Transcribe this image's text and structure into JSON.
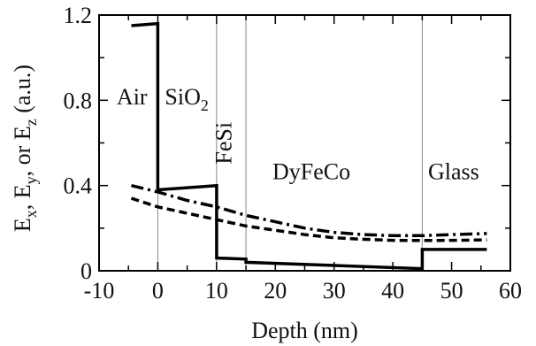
{
  "chart_data": {
    "type": "line",
    "xlabel": "Depth (nm)",
    "ylabel": {
      "parts": [
        {
          "text": "E"
        },
        {
          "text": "x",
          "sub": true
        },
        {
          "text": ", E"
        },
        {
          "text": "y",
          "sub": true
        },
        {
          "text": ", or E"
        },
        {
          "text": "z",
          "sub": true
        },
        {
          "text": " (a.u.)"
        }
      ]
    },
    "xlim": [
      -10,
      60
    ],
    "ylim": [
      0,
      1.2
    ],
    "xticks": [
      -10,
      0,
      10,
      20,
      30,
      40,
      50,
      60
    ],
    "xtick_labels": [
      "-10",
      "0",
      "10",
      "20",
      "30",
      "40",
      "50",
      "60"
    ],
    "yticks": [
      0,
      0.4,
      0.8,
      1.2
    ],
    "ytick_labels": [
      "0",
      "0.4",
      "0.8",
      "1.2"
    ],
    "grid": false,
    "boundaries": [
      0,
      10,
      15,
      45
    ],
    "boundary_color": "#888888",
    "regions": [
      {
        "x": -7,
        "y": 0.78,
        "parts": [
          {
            "text": "Air"
          }
        ]
      },
      {
        "x": 1.2,
        "y": 0.78,
        "parts": [
          {
            "text": "SiO"
          },
          {
            "text": "2",
            "sub": true
          }
        ]
      },
      {
        "x": 12.5,
        "y": 0.5,
        "vertical": true,
        "parts": [
          {
            "text": "FeSi"
          }
        ]
      },
      {
        "x": 19.5,
        "y": 0.43,
        "parts": [
          {
            "text": "DyFeCo"
          }
        ]
      },
      {
        "x": 46,
        "y": 0.43,
        "parts": [
          {
            "text": "Glass"
          }
        ]
      }
    ],
    "series": [
      {
        "style": "solid",
        "color": "#000000",
        "x": [
          -4.5,
          0,
          0,
          0,
          10,
          10,
          10,
          15,
          15,
          45,
          45,
          45,
          56
        ],
        "y": [
          1.15,
          1.16,
          1.16,
          0.38,
          0.4,
          0.4,
          0.06,
          0.055,
          0.04,
          0.01,
          0.01,
          0.1,
          0.1
        ]
      },
      {
        "style": "dashdot",
        "color": "#000000",
        "x": [
          -4.5,
          0,
          5,
          10,
          15,
          20,
          25,
          30,
          35,
          40,
          45,
          50,
          56
        ],
        "y": [
          0.4,
          0.37,
          0.33,
          0.3,
          0.26,
          0.23,
          0.2,
          0.18,
          0.17,
          0.165,
          0.165,
          0.17,
          0.175
        ]
      },
      {
        "style": "dashed",
        "color": "#000000",
        "x": [
          -4.5,
          0,
          5,
          10,
          15,
          20,
          25,
          30,
          35,
          40,
          45,
          50,
          56
        ],
        "y": [
          0.34,
          0.3,
          0.27,
          0.24,
          0.21,
          0.19,
          0.17,
          0.155,
          0.148,
          0.143,
          0.142,
          0.143,
          0.145
        ]
      }
    ]
  }
}
